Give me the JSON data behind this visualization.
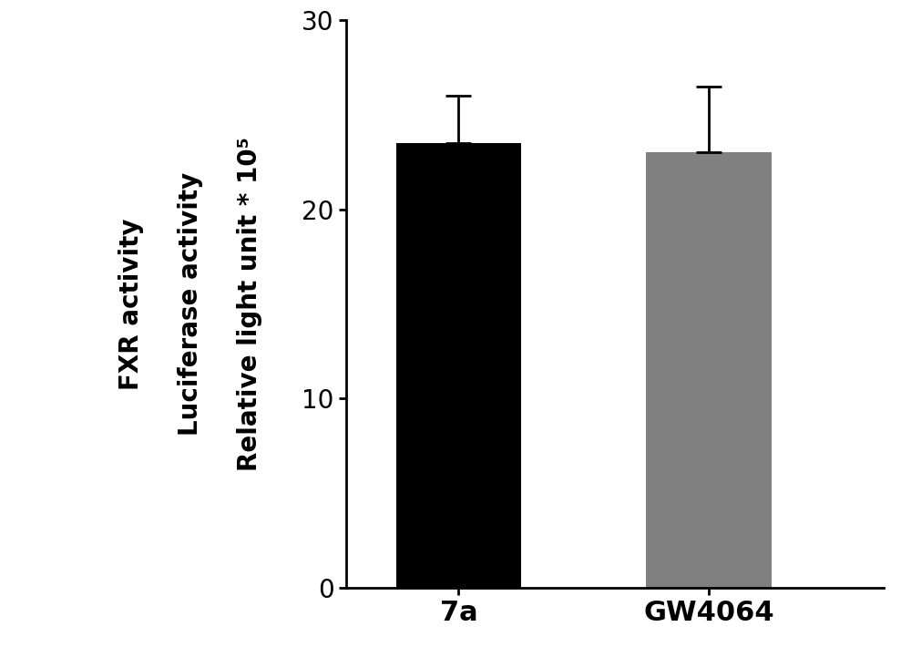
{
  "categories": [
    "7a",
    "GW4064"
  ],
  "values": [
    23.5,
    23.0
  ],
  "errors_up": [
    2.5,
    3.5
  ],
  "bar_colors": [
    "#000000",
    "#808080"
  ],
  "ylabel_line1": "FXR activity",
  "ylabel_line2": "Luciferase activity",
  "ylabel_line3": "Relative light unit * 10⁵",
  "ylim": [
    0,
    30
  ],
  "yticks": [
    0,
    10,
    20,
    30
  ],
  "background_color": "#ffffff",
  "bar_width": 0.5,
  "label_fontsize": 20,
  "tick_fontsize": 20,
  "xlabel_fontsize": 22,
  "error_capsize": 10,
  "error_linewidth": 2.0
}
